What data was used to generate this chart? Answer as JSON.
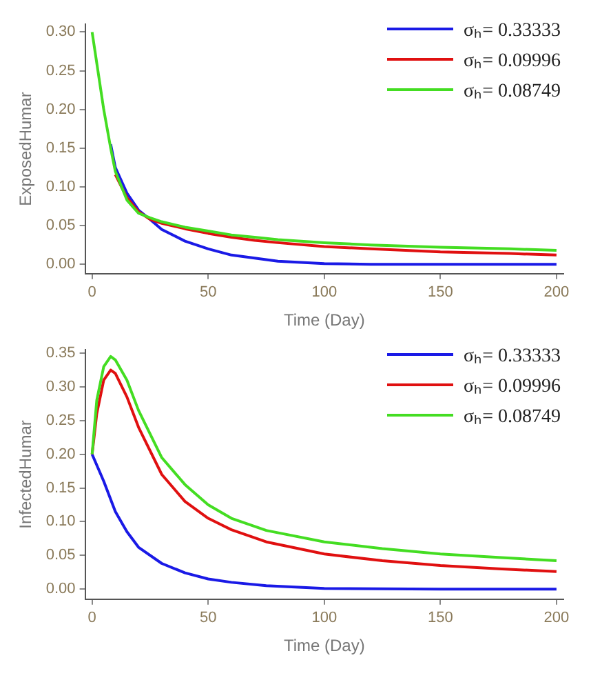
{
  "chart_data": [
    {
      "type": "line",
      "xlabel": "Time (Day)",
      "ylabel": "ExposedHumar",
      "xlim": [
        -3,
        203
      ],
      "xticks": [
        0,
        50,
        100,
        150,
        200
      ],
      "ylim": [
        -0.012,
        0.31
      ],
      "yticks": [
        {
          "value": 0,
          "label": "0.00"
        },
        {
          "value": 0.05,
          "label": "0.05"
        },
        {
          "value": 0.1,
          "label": "0.10"
        },
        {
          "value": 0.15,
          "label": "0.15"
        },
        {
          "value": 0.2,
          "label": "0.20"
        },
        {
          "value": 0.25,
          "label": "0.25"
        },
        {
          "value": 0.3,
          "label": "0.30"
        }
      ],
      "grid": false,
      "legend": "top right",
      "marker": "none",
      "line_style": "solid",
      "series": [
        {
          "name": "σₕ= 0.33333",
          "color": "#1a1ae6",
          "x": [
            8,
            10,
            15,
            20,
            25,
            30,
            40,
            50,
            60,
            70,
            80,
            100,
            120,
            150,
            180,
            200
          ],
          "values": [
            0.155,
            0.125,
            0.092,
            0.07,
            0.058,
            0.045,
            0.03,
            0.02,
            0.012,
            0.008,
            0.004,
            0.001,
            0,
            0,
            0,
            0
          ]
        },
        {
          "name": "σₕ= 0.09996",
          "color": "#e01010",
          "x": [
            10,
            15,
            20,
            25,
            30,
            40,
            50,
            60,
            70,
            80,
            100,
            120,
            150,
            180,
            200
          ],
          "values": [
            0.116,
            0.086,
            0.068,
            0.058,
            0.053,
            0.046,
            0.04,
            0.035,
            0.031,
            0.028,
            0.023,
            0.02,
            0.016,
            0.014,
            0.012
          ]
        },
        {
          "name": "σₕ= 0.08749",
          "color": "#44dd22",
          "x": [
            0,
            2,
            5,
            8,
            10,
            15,
            20,
            25,
            30,
            40,
            50,
            60,
            70,
            80,
            100,
            120,
            150,
            180,
            200
          ],
          "values": [
            0.3,
            0.26,
            0.2,
            0.15,
            0.12,
            0.083,
            0.066,
            0.06,
            0.055,
            0.048,
            0.043,
            0.038,
            0.035,
            0.032,
            0.028,
            0.025,
            0.022,
            0.02,
            0.018
          ]
        }
      ]
    },
    {
      "type": "line",
      "xlabel": "Time (Day)",
      "ylabel": "InfectedHumar",
      "xlim": [
        -3,
        203
      ],
      "xticks": [
        0,
        50,
        100,
        150,
        200
      ],
      "ylim": [
        -0.015,
        0.355
      ],
      "yticks": [
        {
          "value": 0,
          "label": "0.00"
        },
        {
          "value": 0.05,
          "label": "0.05"
        },
        {
          "value": 0.1,
          "label": "0.10"
        },
        {
          "value": 0.15,
          "label": "0.15"
        },
        {
          "value": 0.2,
          "label": "0.20"
        },
        {
          "value": 0.25,
          "label": "0.25"
        },
        {
          "value": 0.3,
          "label": "0.30"
        },
        {
          "value": 0.35,
          "label": "0.35"
        }
      ],
      "grid": false,
      "legend": "top right",
      "marker": "none",
      "line_style": "solid",
      "series": [
        {
          "name": "σₕ= 0.33333",
          "color": "#1a1ae6",
          "x": [
            0,
            5,
            10,
            15,
            20,
            30,
            40,
            50,
            60,
            75,
            100,
            150,
            200
          ],
          "values": [
            0.2,
            0.16,
            0.115,
            0.085,
            0.062,
            0.038,
            0.024,
            0.015,
            0.01,
            0.005,
            0.001,
            0,
            0
          ]
        },
        {
          "name": "σₕ= 0.09996",
          "color": "#e01010",
          "x": [
            0,
            2,
            5,
            8,
            10,
            15,
            20,
            30,
            40,
            50,
            60,
            75,
            100,
            125,
            150,
            175,
            200
          ],
          "values": [
            0.2,
            0.26,
            0.31,
            0.325,
            0.32,
            0.285,
            0.24,
            0.17,
            0.13,
            0.105,
            0.088,
            0.07,
            0.052,
            0.042,
            0.035,
            0.03,
            0.026
          ]
        },
        {
          "name": "σₕ= 0.08749",
          "color": "#44dd22",
          "x": [
            0,
            2,
            5,
            8,
            10,
            15,
            20,
            30,
            40,
            50,
            60,
            75,
            100,
            125,
            150,
            175,
            200
          ],
          "values": [
            0.2,
            0.28,
            0.33,
            0.345,
            0.34,
            0.31,
            0.265,
            0.195,
            0.155,
            0.125,
            0.105,
            0.087,
            0.07,
            0.06,
            0.052,
            0.047,
            0.042
          ]
        }
      ]
    }
  ]
}
